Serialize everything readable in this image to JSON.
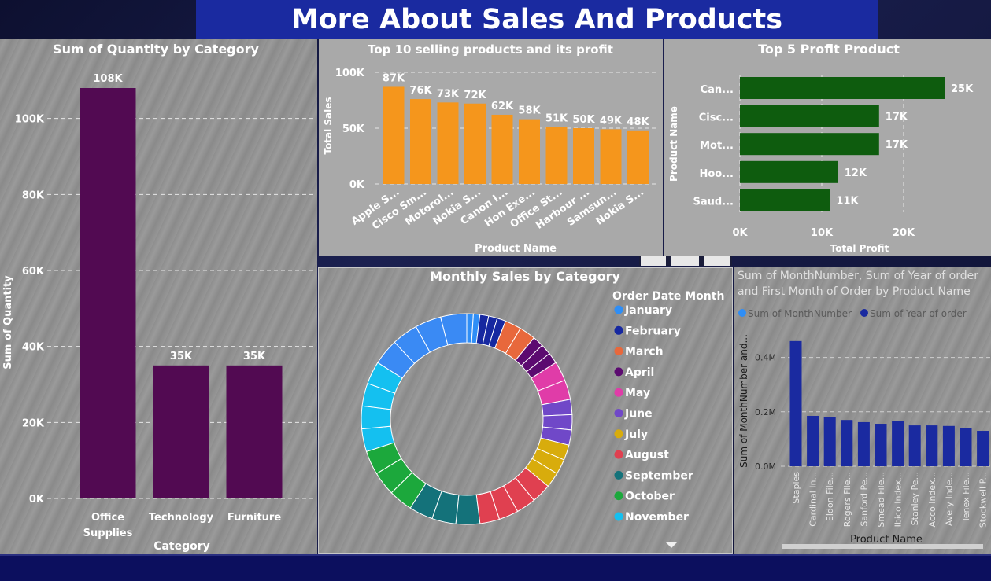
{
  "title": "More About Sales And Products",
  "colors": {
    "purple": "#520a52",
    "orange": "#f5961c",
    "green": "#0e5c0e",
    "blue": "#1a2aa0",
    "banner": "#1a2aa0"
  },
  "chart_data": [
    {
      "type": "bar",
      "title": "Sum of Quantity by Category",
      "xlabel": "Category",
      "ylabel": "Sum of Quantity",
      "categories": [
        "Office Supplies",
        "Technology",
        "Furniture"
      ],
      "category_lines": [
        [
          "Office",
          "Supplies"
        ],
        [
          "Technology"
        ],
        [
          "Furniture"
        ]
      ],
      "values": [
        108000,
        35000,
        35000
      ],
      "data_labels": [
        "108K",
        "35K",
        "35K"
      ],
      "ylim": [
        0,
        108000
      ],
      "yticks": [
        0,
        20000,
        40000,
        60000,
        80000,
        100000
      ],
      "ytick_labels": [
        "0K",
        "20K",
        "40K",
        "60K",
        "80K",
        "100K"
      ],
      "grid": true
    },
    {
      "type": "bar",
      "title": "Top 10 selling products and its profit",
      "xlabel": "Product Name",
      "ylabel": "Total Sales",
      "categories": [
        "Apple S...",
        "Cisco Sm...",
        "Motorol...",
        "Nokia S...",
        "Canon I...",
        "Hon Exe...",
        "Office St...",
        "Harbour ...",
        "Samsun...",
        "Nokia S..."
      ],
      "values": [
        87000,
        76000,
        73000,
        72000,
        62000,
        58000,
        51000,
        50000,
        49000,
        48000
      ],
      "data_labels": [
        "87K",
        "76K",
        "73K",
        "72K",
        "62K",
        "58K",
        "51K",
        "50K",
        "49K",
        "48K"
      ],
      "ylim": [
        0,
        100000
      ],
      "yticks": [
        0,
        50000,
        100000
      ],
      "ytick_labels": [
        "0K",
        "50K",
        "100K"
      ],
      "grid": true
    },
    {
      "type": "bar",
      "orientation": "horizontal",
      "title": "Top 5 Profit Product",
      "xlabel": "Total Profit",
      "ylabel": "Product Name",
      "categories": [
        "Can...",
        "Cisc...",
        "Mot...",
        "Hoo...",
        "Saud..."
      ],
      "values": [
        25000,
        17000,
        17000,
        12000,
        11000
      ],
      "data_labels": [
        "25K",
        "17K",
        "17K",
        "12K",
        "11K"
      ],
      "xlim": [
        0,
        25000
      ],
      "xticks": [
        0,
        10000,
        20000
      ],
      "xtick_labels": [
        "0K",
        "10K",
        "20K"
      ],
      "grid": true
    },
    {
      "type": "pie",
      "donut": true,
      "title": "Monthly Sales by Category",
      "legend_title": "Order Date Month",
      "legend": [
        "January",
        "February",
        "March",
        "April",
        "May",
        "June",
        "July",
        "August",
        "September",
        "October",
        "November"
      ],
      "legend_colors": [
        "#2f8ef6",
        "#1628a0",
        "#e8683c",
        "#5c0a70",
        "#e03ca8",
        "#7048c8",
        "#d8ac0c",
        "#e04050",
        "#14727a",
        "#1ca83c",
        "#14c0f0"
      ],
      "month_colors": [
        "#2f8ef6",
        "#1628a0",
        "#e8683c",
        "#5c0a70",
        "#e03ca8",
        "#7048c8",
        "#d8ac0c",
        "#e04050",
        "#14727a",
        "#1ca83c",
        "#14c0f0",
        "#3a8af4"
      ],
      "segments_per_month": [
        2,
        3,
        2,
        3,
        2,
        3,
        3,
        4,
        3,
        3,
        4,
        4
      ],
      "month_weights": [
        2,
        4,
        5,
        5,
        6,
        7,
        7,
        12,
        11,
        11,
        14,
        16
      ]
    },
    {
      "type": "bar",
      "title": "Sum of MonthNumber, Sum of Year of order and First Month of Order by Product Name",
      "title_lines": [
        "Sum of MonthNumber, Sum of Year of order",
        "and First Month of Order by Product Name"
      ],
      "xlabel": "Product Name",
      "ylabel": "Sum of MonthNumber and...",
      "legend": [
        {
          "name": "Sum of MonthNumber",
          "color": "#2f8ef6"
        },
        {
          "name": "Sum of Year of order",
          "color": "#1a2aa0"
        }
      ],
      "categories": [
        "Staples",
        "Cardinal In...",
        "Eldon File...",
        "Rogers File...",
        "Sanford Pe...",
        "Smead File...",
        "Ibico Index...",
        "Stanley Pe...",
        "Acco Index...",
        "Avery Inde...",
        "Tenex File...",
        "Stockwell P..."
      ],
      "values": [
        460000,
        185000,
        180000,
        170000,
        162000,
        156000,
        166000,
        150000,
        150000,
        148000,
        140000,
        130000
      ],
      "ylim": [
        0,
        500000
      ],
      "yticks": [
        0,
        200000,
        400000
      ],
      "ytick_labels": [
        "0.0M",
        "0.2M",
        "0.4M"
      ],
      "grid": true
    }
  ]
}
